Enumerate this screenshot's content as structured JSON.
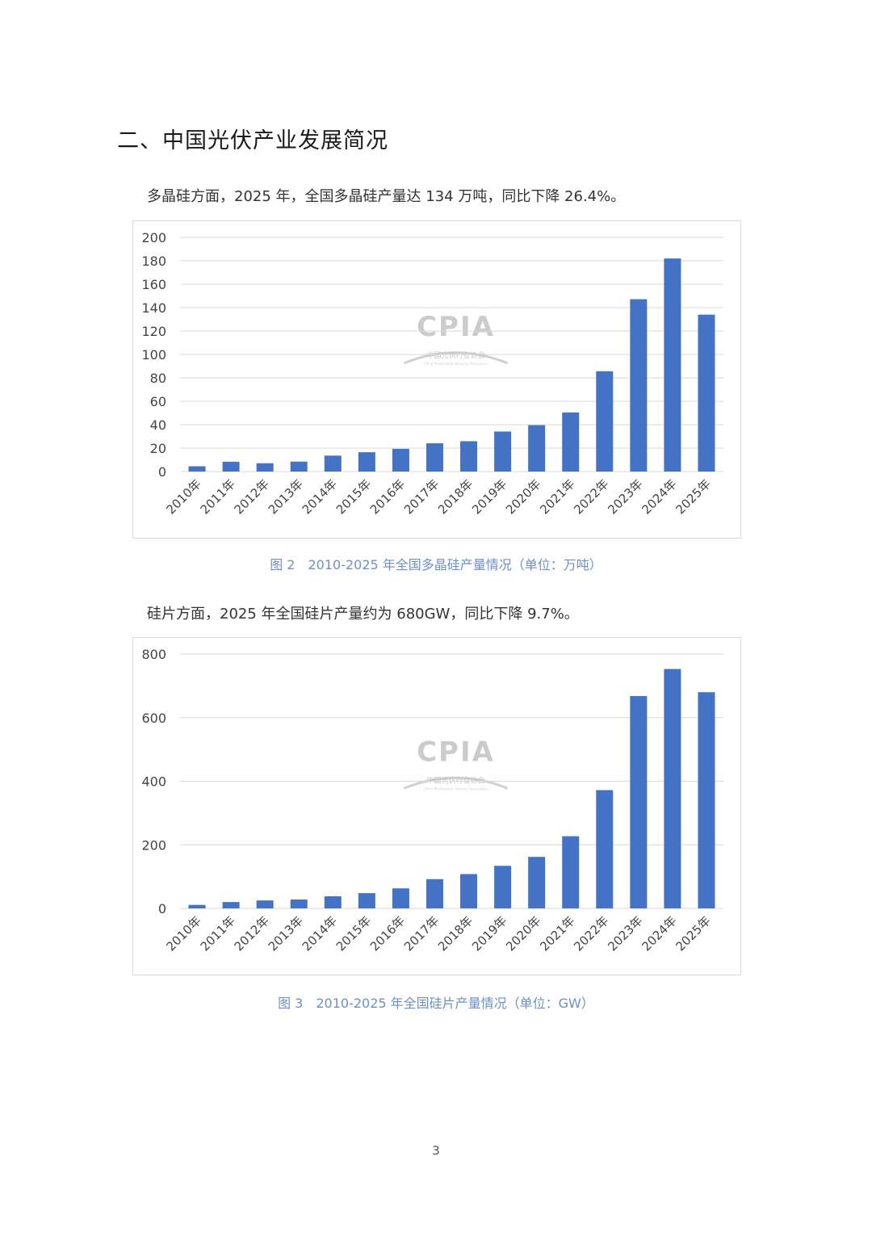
{
  "section_title": "二、中国光伏产业发展简况",
  "paragraph_1": "多晶硅方面，2025 年，全国多晶硅产量达 134 万吨，同比下降 26.4%。",
  "paragraph_2": "硅片方面，2025 年全国硅片产量约为 680GW，同比下降 9.7%。",
  "caption_1": "图 2　2010-2025 年全国多晶硅产量情况（单位：万吨）",
  "caption_2": "图 3　2010-2025 年全国硅片产量情况（单位：GW）",
  "page_number": "3",
  "watermark": {
    "logo": "CPIA",
    "org": "中国光伏行业协会",
    "org_en": "China Photovoltaic Industry Association"
  },
  "colors": {
    "bar": "#4472c4",
    "grid": "#d9d9d9",
    "caption": "#6f8fc4"
  },
  "chart_data": [
    {
      "type": "bar",
      "title": "",
      "xlabel": "",
      "ylabel": "",
      "categories": [
        "2010年",
        "2011年",
        "2012年",
        "2013年",
        "2014年",
        "2015年",
        "2016年",
        "2017年",
        "2018年",
        "2019年",
        "2020年",
        "2021年",
        "2022年",
        "2023年",
        "2024年",
        "2025年"
      ],
      "values": [
        4.5,
        8.4,
        7.1,
        8.5,
        13.6,
        16.5,
        19.4,
        24.2,
        25.9,
        34.2,
        39.6,
        50.5,
        85.7,
        147.2,
        182.0,
        134.0
      ],
      "ylim": [
        0,
        200
      ],
      "yticks": [
        0,
        20,
        40,
        60,
        80,
        100,
        120,
        140,
        160,
        180,
        200
      ],
      "grid": true,
      "legend": "none"
    },
    {
      "type": "bar",
      "title": "",
      "xlabel": "",
      "ylabel": "",
      "categories": [
        "2010年",
        "2011年",
        "2012年",
        "2013年",
        "2014年",
        "2015年",
        "2016年",
        "2017年",
        "2018年",
        "2019年",
        "2020年",
        "2021年",
        "2022年",
        "2023年",
        "2024年",
        "2025年"
      ],
      "values": [
        11,
        20,
        25,
        28,
        38,
        48,
        63,
        92,
        108,
        134,
        162,
        227,
        372,
        668,
        753,
        680
      ],
      "ylim": [
        0,
        800
      ],
      "yticks": [
        0,
        200,
        400,
        600,
        800
      ],
      "grid": true,
      "legend": "none"
    }
  ]
}
